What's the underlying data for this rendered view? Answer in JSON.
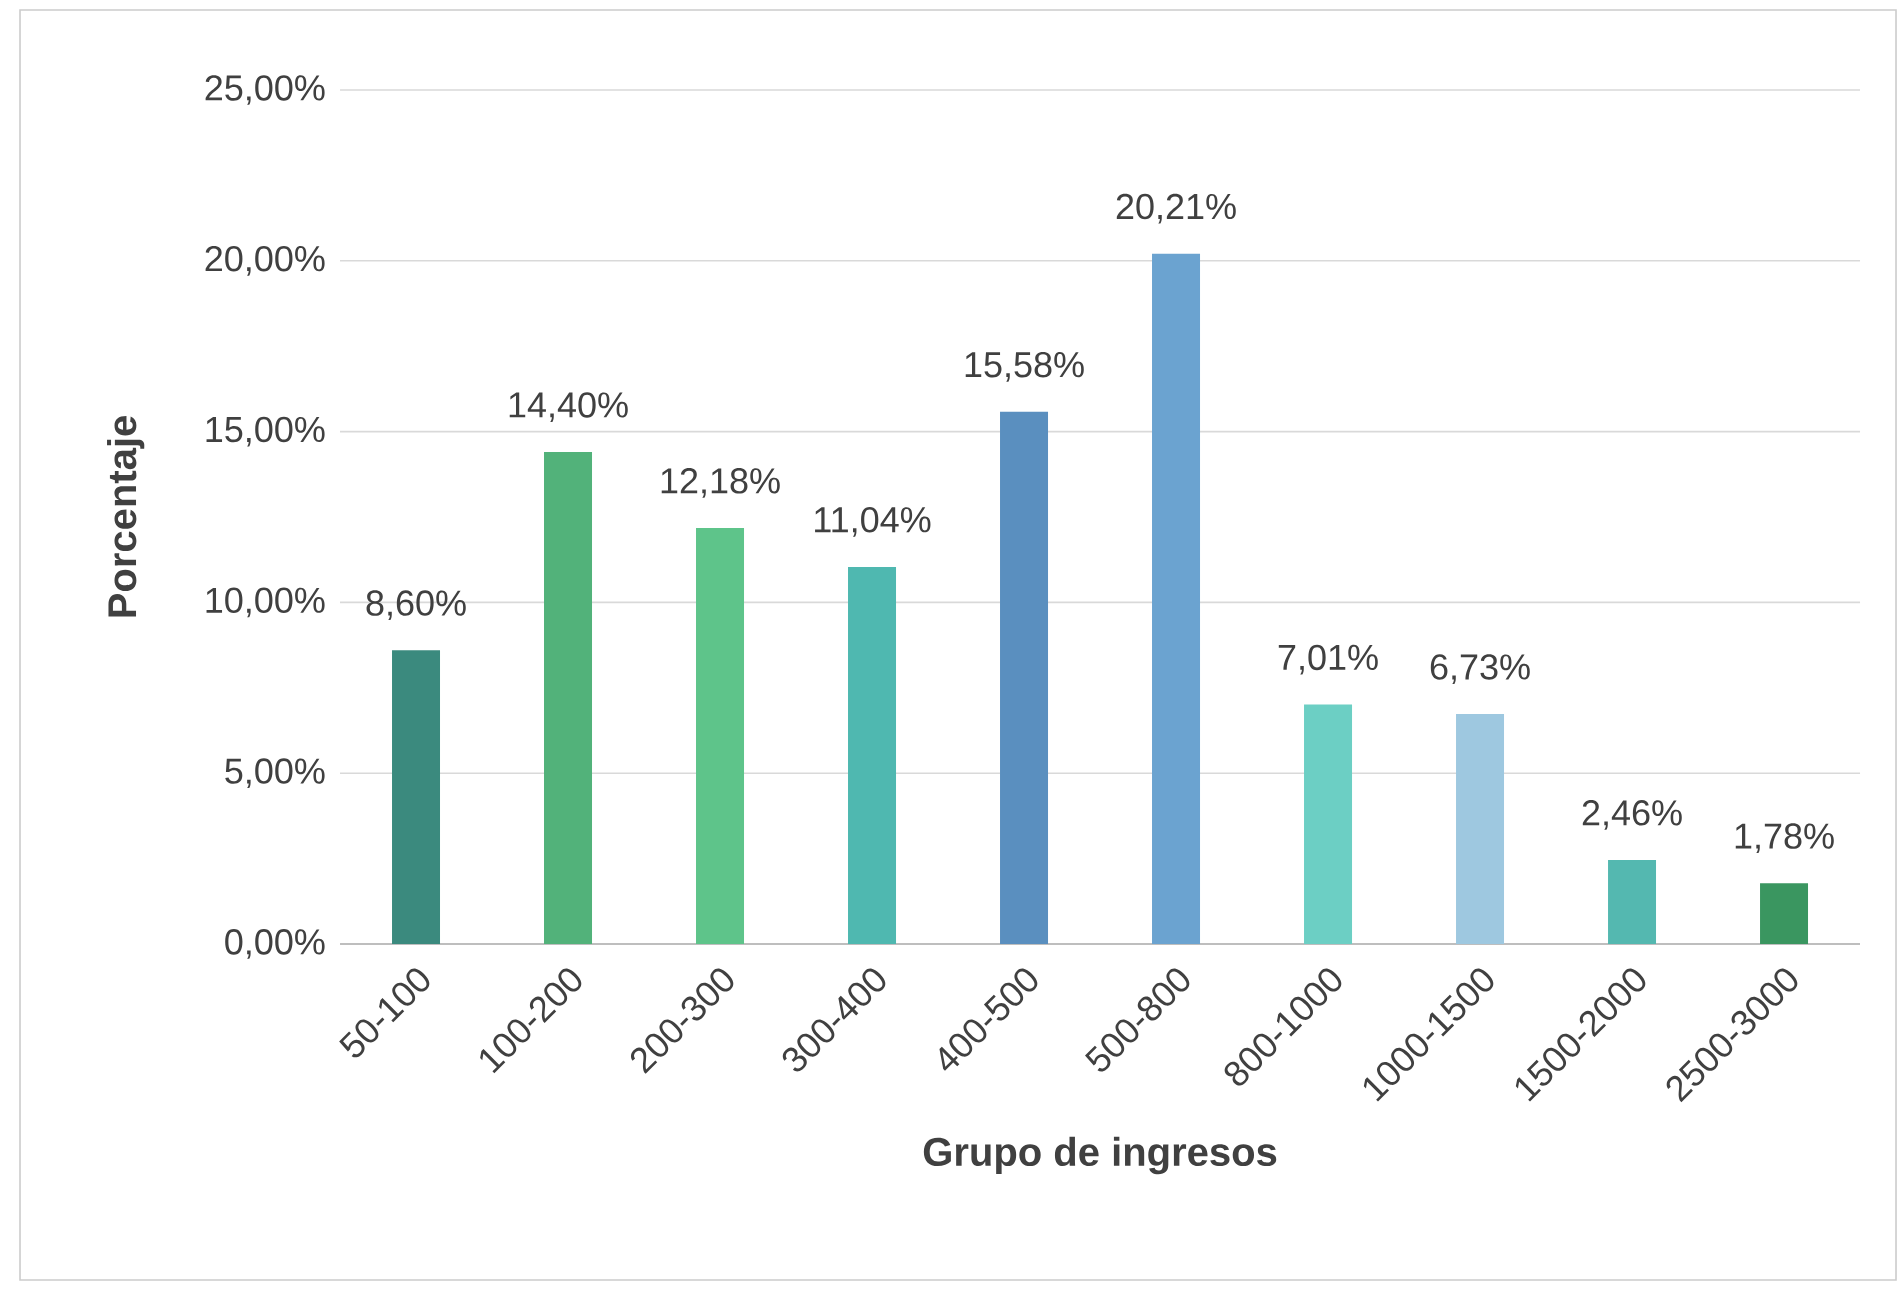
{
  "chart_data": {
    "type": "bar",
    "xlabel": "Grupo de ingresos",
    "ylabel": "Porcentaje",
    "categories": [
      "50-100",
      "100-200",
      "200-300",
      "300-400",
      "400-500",
      "500-800",
      "800-1000",
      "1000-1500",
      "1500-2000",
      "2500-3000"
    ],
    "values": [
      8.6,
      14.4,
      12.18,
      11.04,
      15.58,
      20.21,
      7.01,
      6.73,
      2.46,
      1.78
    ],
    "value_labels": [
      "8,60%",
      "14,40%",
      "12,18%",
      "11,04%",
      "15,58%",
      "20,21%",
      "7,01%",
      "6,73%",
      "2,46%",
      "1,78%"
    ],
    "colors": [
      "#3b8a7e",
      "#52b27a",
      "#5ec48a",
      "#4fb8b0",
      "#5a8fbf",
      "#6ba3d0",
      "#6ccfc4",
      "#9ec8e0",
      "#54b8b0",
      "#3a9660"
    ],
    "ylim": [
      0,
      25
    ],
    "yticks": [
      {
        "value": 0,
        "label": "0,00%"
      },
      {
        "value": 5,
        "label": "5,00%"
      },
      {
        "value": 10,
        "label": "10,00%"
      },
      {
        "value": 15,
        "label": "15,00%"
      },
      {
        "value": 20,
        "label": "20,00%"
      },
      {
        "value": 25,
        "label": "25,00%"
      }
    ],
    "grid": "y"
  }
}
